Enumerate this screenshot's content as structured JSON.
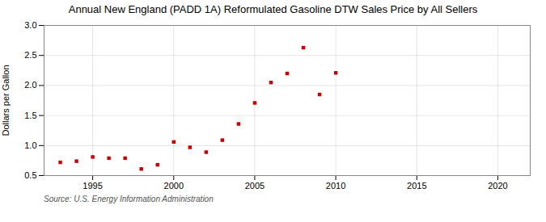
{
  "chart_data": {
    "type": "scatter",
    "title": "Annual New England (PADD 1A) Reformulated Gasoline DTW Sales Price by All Sellers",
    "ylabel": "Dollars per Gallon",
    "annotations": [
      "Source: U.S. Energy Information Administration"
    ],
    "x": [
      1993,
      1994,
      1995,
      1996,
      1997,
      1998,
      1999,
      2000,
      2001,
      2002,
      2003,
      2004,
      2005,
      2006,
      2007,
      2008,
      2009,
      2010
    ],
    "values": [
      0.72,
      0.74,
      0.81,
      0.79,
      0.79,
      0.61,
      0.68,
      1.06,
      0.97,
      0.89,
      1.09,
      1.36,
      1.71,
      2.05,
      2.2,
      2.63,
      1.85,
      2.21
    ],
    "color": "#cc0000",
    "marker": "square",
    "xlim": [
      1992,
      2022
    ],
    "ylim": [
      0.5,
      3.0
    ],
    "xticks": [
      1995,
      2000,
      2005,
      2010,
      2015,
      2020
    ],
    "yticks": [
      0.5,
      {
        "value": 1.0,
        "label": "1.0"
      },
      1.5,
      {
        "value": 2.0,
        "label": "2.0"
      },
      2.5,
      {
        "value": 3.0,
        "label": "3.0"
      }
    ],
    "grid": true
  }
}
